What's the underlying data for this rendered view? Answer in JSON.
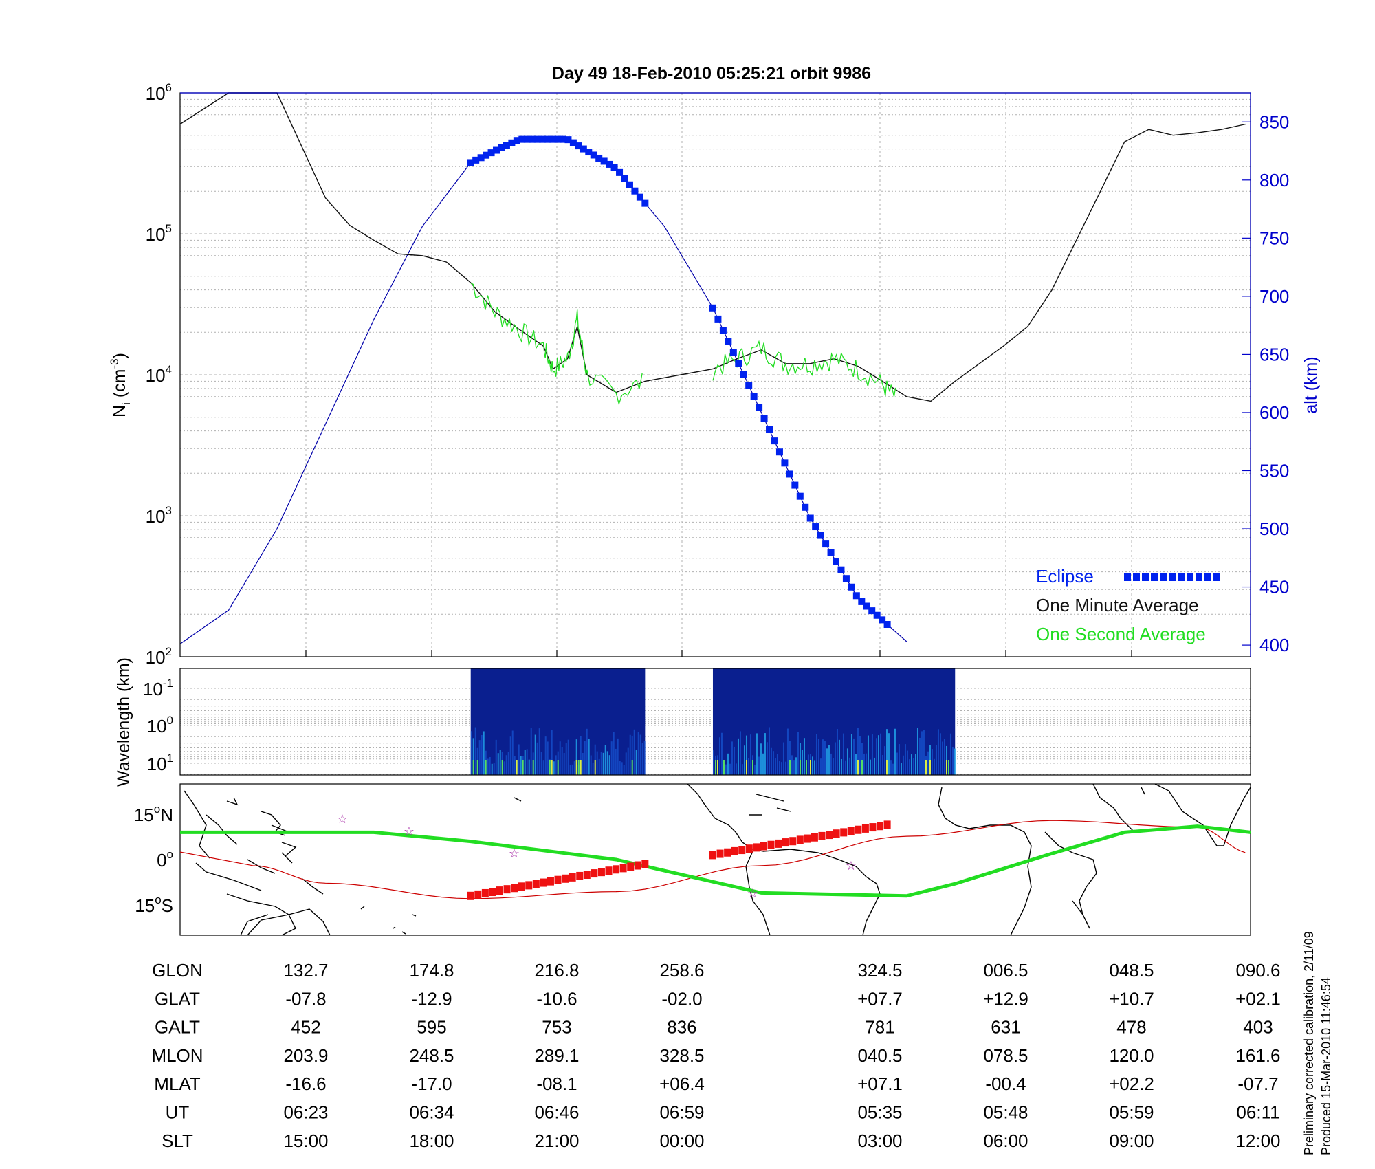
{
  "title": "Day 49  18-Feb-2010 05:25:21   orbit 9986",
  "side_note": {
    "line1": "Preliminary corrected calibration, 2/11/09",
    "line2": "Produced 15-Mar-2010 11:46:54"
  },
  "colors": {
    "eclipse": "#0022ee",
    "minute_avg": "#111111",
    "second_avg": "#22dd22",
    "altitude": "#0000aa",
    "orbit_track": "#cc0000",
    "dip_equator": "#22dd22",
    "eclipse_track": "#ee1111",
    "stars": "#aa33aa",
    "spectrogram_bg": "#0a1f8f"
  },
  "top_panel": {
    "ylabel_left": "N",
    "ylabel_left_sub": "i",
    "ylabel_left_units": " (cm",
    "ylabel_left_sup": "-3",
    "ylabel_left_close": ")",
    "ylabel_right": "alt (km)",
    "left_ticks": [
      {
        "base": "10",
        "exp": "2",
        "value": 100
      },
      {
        "base": "10",
        "exp": "3",
        "value": 1000
      },
      {
        "base": "10",
        "exp": "4",
        "value": 10000
      },
      {
        "base": "10",
        "exp": "5",
        "value": 100000
      },
      {
        "base": "10",
        "exp": "6",
        "value": 1000000
      }
    ],
    "right_ticks": [
      "400",
      "450",
      "500",
      "550",
      "600",
      "650",
      "700",
      "750",
      "800",
      "850"
    ],
    "legend": [
      {
        "label": "Eclipse",
        "color": "#0022ee"
      },
      {
        "label": "One Minute Average",
        "color": "#111111"
      },
      {
        "label": "One Second Average",
        "color": "#22dd22"
      }
    ]
  },
  "middle_panel": {
    "ylabel": "Wavelength (km)",
    "ticks": [
      {
        "base": "10",
        "exp": "-1"
      },
      {
        "base": "10",
        "exp": "0"
      },
      {
        "base": "10",
        "exp": "1"
      }
    ]
  },
  "map_panel": {
    "ticks": [
      {
        "num": "15",
        "deg": "o",
        "hem": "N"
      },
      {
        "num": "0",
        "deg": "o",
        "hem": ""
      },
      {
        "num": "15",
        "deg": "o",
        "hem": "S"
      }
    ]
  },
  "ephemeris": {
    "rows": [
      {
        "label": "GLON",
        "values": [
          "132.7",
          "174.8",
          "216.8",
          "258.6",
          "324.5",
          "006.5",
          "048.5",
          "090.6"
        ]
      },
      {
        "label": "GLAT",
        "values": [
          "-07.8",
          "-12.9",
          "-10.6",
          "-02.0",
          "+07.7",
          "+12.9",
          "+10.7",
          "+02.1"
        ]
      },
      {
        "label": "GALT",
        "values": [
          "452",
          "595",
          "753",
          "836",
          "781",
          "631",
          "478",
          "403"
        ]
      },
      {
        "label": "MLON",
        "values": [
          "203.9",
          "248.5",
          "289.1",
          "328.5",
          "040.5",
          "078.5",
          "120.0",
          "161.6"
        ]
      },
      {
        "label": "MLAT",
        "values": [
          "-16.6",
          "-17.0",
          "-08.1",
          "+06.4",
          "+07.1",
          "-00.4",
          "+02.2",
          "-07.7"
        ]
      },
      {
        "label": "UT",
        "values": [
          "06:23",
          "06:34",
          "06:46",
          "06:59",
          "05:35",
          "05:48",
          "05:59",
          "06:11"
        ]
      },
      {
        "label": "SLT",
        "values": [
          "15:00",
          "18:00",
          "21:00",
          "00:00",
          "03:00",
          "06:00",
          "09:00",
          "12:00"
        ]
      }
    ]
  },
  "chart_data": {
    "type": "line",
    "x": [
      "15:00",
      "18:00",
      "21:00",
      "00:00",
      "03:00",
      "06:00",
      "09:00",
      "12:00"
    ],
    "ion_density_minute_avg": {
      "name": "One Minute Average",
      "ylim": [
        100,
        1000000
      ],
      "yscale": "log",
      "points": [
        [
          -3.0,
          600000
        ],
        [
          -2.0,
          1000000
        ],
        [
          -1.0,
          1000000
        ],
        [
          0.0,
          180000
        ],
        [
          0.5,
          115000
        ],
        [
          1.0,
          90000
        ],
        [
          1.5,
          72000
        ],
        [
          2.0,
          70000
        ],
        [
          2.5,
          63000
        ],
        [
          3.0,
          45000
        ],
        [
          3.5,
          28000
        ],
        [
          4.0,
          21000
        ],
        [
          4.5,
          16000
        ],
        [
          4.7,
          11000
        ],
        [
          5.0,
          13000
        ],
        [
          5.2,
          22000
        ],
        [
          5.4,
          10000
        ],
        [
          6.0,
          7500
        ],
        [
          6.6,
          9000
        ],
        [
          8.0,
          11000
        ],
        [
          8.5,
          13000
        ],
        [
          9.0,
          15000
        ],
        [
          9.5,
          12000
        ],
        [
          10.0,
          12000
        ],
        [
          10.5,
          13000
        ],
        [
          11.0,
          11500
        ],
        [
          11.5,
          9000
        ],
        [
          12.0,
          7000
        ],
        [
          12.5,
          6500
        ],
        [
          13.0,
          9000
        ],
        [
          14.0,
          16000
        ],
        [
          14.5,
          22000
        ],
        [
          15.0,
          40000
        ],
        [
          16.0,
          200000
        ],
        [
          16.5,
          450000
        ],
        [
          17.0,
          550000
        ],
        [
          17.5,
          500000
        ],
        [
          18.0,
          520000
        ],
        [
          18.5,
          550000
        ],
        [
          19.0,
          600000
        ]
      ]
    },
    "ion_density_second_avg": {
      "name": "One Second Average",
      "segments": [
        [
          [
            3.0,
            45000
          ],
          [
            3.5,
            28000
          ],
          [
            4.0,
            21000
          ],
          [
            4.5,
            16000
          ],
          [
            4.7,
            11000
          ],
          [
            5.0,
            13000
          ],
          [
            5.2,
            25000
          ],
          [
            5.4,
            10000
          ],
          [
            6.0,
            7300
          ],
          [
            6.6,
            9000
          ]
        ],
        [
          [
            8.0,
            11000
          ],
          [
            8.5,
            13000
          ],
          [
            9.0,
            15500
          ],
          [
            9.5,
            12000
          ],
          [
            10.0,
            12000
          ],
          [
            10.5,
            13000
          ],
          [
            11.0,
            11000
          ],
          [
            11.5,
            8500
          ],
          [
            11.8,
            6800
          ]
        ]
      ]
    },
    "altitude_km": {
      "name": "alt (km)",
      "ylim": [
        390,
        875
      ],
      "points": [
        [
          -3.0,
          401
        ],
        [
          -2.0,
          430
        ],
        [
          -1.0,
          500
        ],
        [
          0.0,
          590
        ],
        [
          1.0,
          680
        ],
        [
          2.0,
          760
        ],
        [
          3.0,
          815
        ],
        [
          4.0,
          835
        ],
        [
          5.0,
          835
        ],
        [
          6.0,
          810
        ],
        [
          7.0,
          760
        ],
        [
          8.0,
          690
        ],
        [
          9.0,
          600
        ],
        [
          10.0,
          510
        ],
        [
          11.0,
          440
        ],
        [
          12.0,
          403
        ]
      ]
    },
    "eclipse_altitude_km": {
      "name": "Eclipse",
      "segments": [
        {
          "x_start": 3.0,
          "x_end": 6.6
        },
        {
          "x_start": 8.0,
          "x_end": 11.6
        }
      ]
    },
    "spectrogram_coverage": [
      {
        "x_start": 3.0,
        "x_end": 6.6
      },
      {
        "x_start": 8.0,
        "x_end": 13.0
      }
    ],
    "map": {
      "xlim": [
        120,
        96
      ],
      "ylim": [
        -25,
        25
      ],
      "glat_at_ticks": [
        -7.8,
        -12.9,
        -10.6,
        -2.0,
        7.7,
        12.9,
        10.7,
        2.1
      ]
    }
  }
}
